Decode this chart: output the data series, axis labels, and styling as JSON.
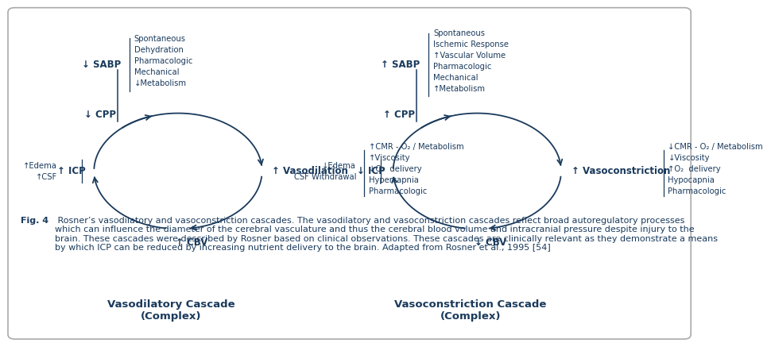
{
  "bg_color": "#ffffff",
  "text_color": "#1a3a5c",
  "arrow_color": "#1a3a5c",
  "fig_width": 9.61,
  "fig_height": 12.0,
  "left_cascade": {
    "title": "Vasodilatory Cascade\n(Complex)",
    "sabp_label": "↓ SABP",
    "cpp_label": "↓ CPP",
    "center_label": "↑ Vasodilation",
    "cbv_label": "↑ CBV",
    "icp_label": "↑ ICP",
    "edema_label": "↑Edema\n↑CSF",
    "sabp_causes": "Spontaneous\nDehydration\nPharmacologic\nMechanical\n↓Metabolism",
    "vasodilation_causes": "↑CMR - O₂ / Metabolism\n↑Viscosity\n↓O₂  delivery\nHypercapnia\nPharmacologic"
  },
  "right_cascade": {
    "title": "Vasoconstriction Cascade\n(Complex)",
    "sabp_label": "↑ SABP",
    "cpp_label": "↑ CPP",
    "center_label": "↑ Vasoconstriction",
    "cbv_label": "↓ CBV",
    "icp_label": "↓ ICP",
    "edema_label": "↓Edema\nCSF Withdrawal",
    "sabp_causes": "Spontaneous\nIschemic Response\n↑Vascular Volume\nPharmacologic\nMechanical\n↑Metabolism",
    "vasoconstriction_causes": "↓CMR - O₂ / Metabolism\n↓Viscosity\n↑O₂  delivery\nHypocapnia\nPharmacologic"
  },
  "caption_bold": "Fig. 4",
  "caption_text": " Rosner’s vasodilatory and vasoconstriction cascades. The vasodilatory and vasoconstriction cascades reflect broad autoregulatory processes\nwhich can influence the diameter of the cerebral vasculature and thus the cerebral blood volume and intracranial pressure despite injury to the\nbrain. These cascades were described by Rosner based on clinical observations. These cascades are clinically relevant as they demonstrate a means\nby which ICP can be reduced by increasing nutrient delivery to the brain. Adapted from Rosner et al., 1995 [54]"
}
